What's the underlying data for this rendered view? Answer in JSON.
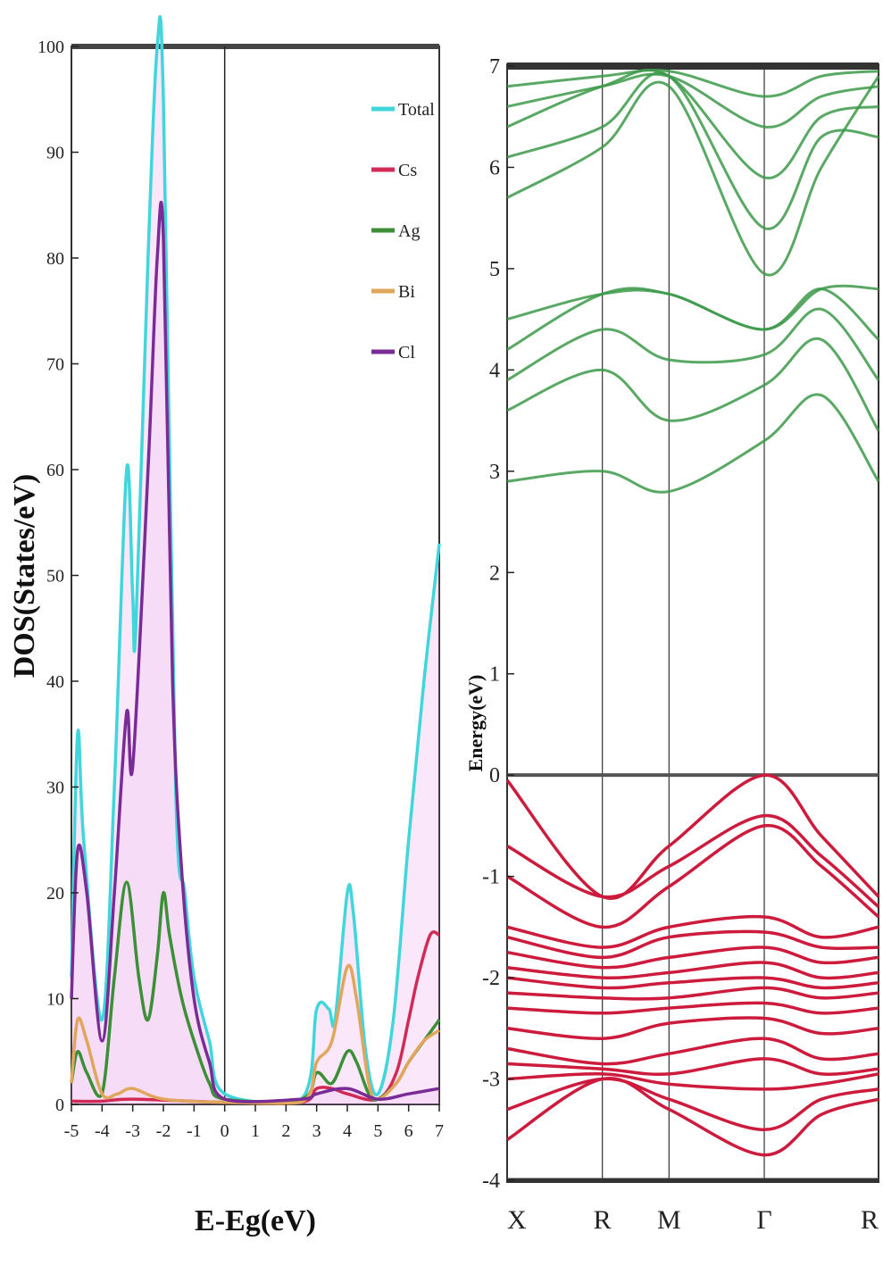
{
  "chart_data": [
    {
      "type": "area",
      "xlabel": "E-Eg(eV)",
      "ylabel": "DOS(States/eV)",
      "xlim": [
        -5,
        7
      ],
      "ylim": [
        0,
        100
      ],
      "x_ticks": [
        "-5",
        "-4",
        "-3",
        "-2",
        "-1",
        "0",
        "1",
        "2",
        "3",
        "4",
        "5",
        "6",
        "7"
      ],
      "y_ticks": [
        "0",
        "10",
        "20",
        "30",
        "40",
        "50",
        "60",
        "70",
        "80",
        "90",
        "100"
      ],
      "legend_position": "top-right",
      "series": [
        {
          "name": "Total",
          "color": "#40d6dc",
          "points": [
            [
              -5,
              12
            ],
            [
              -4.8,
              35
            ],
            [
              -4.6,
              25
            ],
            [
              -4,
              8
            ],
            [
              -3.6,
              30
            ],
            [
              -3.2,
              60
            ],
            [
              -3,
              48
            ],
            [
              -2.9,
              45
            ],
            [
              -2.5,
              80
            ],
            [
              -2.2,
              100
            ],
            [
              -2,
              95
            ],
            [
              -1.6,
              30
            ],
            [
              -1.3,
              20
            ],
            [
              -1,
              12
            ],
            [
              -0.5,
              6
            ],
            [
              0,
              1
            ],
            [
              2.5,
              0.5
            ],
            [
              3,
              9
            ],
            [
              3.4,
              9
            ],
            [
              3.6,
              8
            ],
            [
              4,
              20
            ],
            [
              4.2,
              18
            ],
            [
              4.6,
              5
            ],
            [
              5,
              1
            ],
            [
              5.5,
              8
            ],
            [
              6,
              25
            ],
            [
              6.5,
              40
            ],
            [
              7,
              53
            ]
          ]
        },
        {
          "name": "Cs",
          "color": "#d22a56",
          "points": [
            [
              -5,
              0.3
            ],
            [
              -4,
              0.3
            ],
            [
              -3,
              0.5
            ],
            [
              0,
              0.2
            ],
            [
              2.5,
              0.2
            ],
            [
              3,
              1.5
            ],
            [
              3.5,
              1.5
            ],
            [
              4,
              1
            ],
            [
              5,
              0.5
            ],
            [
              5.6,
              3
            ],
            [
              6,
              8
            ],
            [
              6.3,
              12
            ],
            [
              6.7,
              16
            ],
            [
              7,
              16
            ]
          ]
        },
        {
          "name": "Ag",
          "color": "#3b8f36",
          "points": [
            [
              -5,
              2
            ],
            [
              -4.8,
              5
            ],
            [
              -4.5,
              3
            ],
            [
              -4,
              1
            ],
            [
              -3.6,
              12
            ],
            [
              -3.2,
              21
            ],
            [
              -2.8,
              12
            ],
            [
              -2.5,
              8
            ],
            [
              -2.2,
              14
            ],
            [
              -2,
              20
            ],
            [
              -1.8,
              16
            ],
            [
              -1.4,
              10
            ],
            [
              -1,
              6
            ],
            [
              -0.5,
              2
            ],
            [
              0,
              0.5
            ],
            [
              2.5,
              0.5
            ],
            [
              3,
              3
            ],
            [
              3.5,
              2
            ],
            [
              4,
              5
            ],
            [
              4.3,
              4
            ],
            [
              4.7,
              1
            ],
            [
              5,
              0.5
            ],
            [
              5.6,
              2
            ],
            [
              6,
              4
            ],
            [
              6.5,
              6
            ],
            [
              7,
              8
            ]
          ]
        },
        {
          "name": "Bi",
          "color": "#e0a65c",
          "points": [
            [
              -5,
              2
            ],
            [
              -4.8,
              8
            ],
            [
              -4.5,
              6
            ],
            [
              -4,
              1
            ],
            [
              -3.5,
              1
            ],
            [
              -3,
              1.5
            ],
            [
              -2,
              0.5
            ],
            [
              0,
              0.2
            ],
            [
              2.5,
              0.2
            ],
            [
              3,
              4
            ],
            [
              3.5,
              6
            ],
            [
              4,
              13
            ],
            [
              4.3,
              10
            ],
            [
              4.7,
              2
            ],
            [
              5,
              0.5
            ],
            [
              5.6,
              2
            ],
            [
              6,
              4
            ],
            [
              6.5,
              6
            ],
            [
              7,
              7
            ]
          ]
        },
        {
          "name": "Cl",
          "color": "#7a2c96",
          "points": [
            [
              -5,
              10
            ],
            [
              -4.8,
              24
            ],
            [
              -4.5,
              20
            ],
            [
              -4,
              6
            ],
            [
              -3.6,
              20
            ],
            [
              -3.2,
              37
            ],
            [
              -3,
              32
            ],
            [
              -2.5,
              60
            ],
            [
              -2.2,
              80
            ],
            [
              -2,
              82
            ],
            [
              -1.7,
              40
            ],
            [
              -1.4,
              22
            ],
            [
              -1,
              10
            ],
            [
              -0.5,
              4
            ],
            [
              0,
              0.5
            ],
            [
              2.5,
              0.5
            ],
            [
              3,
              1
            ],
            [
              4,
              1.5
            ],
            [
              5,
              0.5
            ],
            [
              6,
              1
            ],
            [
              7,
              1.5
            ]
          ]
        }
      ]
    },
    {
      "type": "line",
      "ylabel": "Energy(eV)",
      "ylim": [
        -4,
        7
      ],
      "y_ticks": [
        "-4",
        "-3",
        "-2",
        "-1",
        "0",
        "1",
        "2",
        "3",
        "4",
        "5",
        "6",
        "7"
      ],
      "x_ticks": [
        "X",
        "R",
        "M",
        "Γ",
        "R"
      ],
      "k_positions": [
        0,
        1,
        1.7,
        2.7,
        3.9
      ],
      "fermi_level": 0,
      "conduction_color": "#3c9a4a",
      "valence_color": "#cc1b3c",
      "conduction_bands": [
        [
          2.9,
          3.0,
          2.8,
          3.3,
          3.75,
          2.9
        ],
        [
          3.6,
          4.0,
          3.5,
          3.85,
          4.3,
          3.4
        ],
        [
          3.9,
          4.4,
          4.1,
          4.15,
          4.6,
          3.9
        ],
        [
          4.2,
          4.75,
          4.75,
          4.4,
          4.8,
          4.3
        ],
        [
          4.5,
          4.75,
          4.75,
          4.4,
          4.8,
          4.8
        ],
        [
          5.7,
          6.2,
          6.8,
          4.95,
          6.0,
          6.9
        ],
        [
          6.1,
          6.4,
          6.9,
          5.4,
          6.3,
          6.3
        ],
        [
          6.4,
          6.8,
          6.9,
          5.9,
          6.5,
          6.6
        ],
        [
          6.6,
          6.8,
          6.9,
          6.4,
          6.7,
          6.8
        ],
        [
          6.8,
          6.9,
          6.95,
          6.7,
          6.9,
          6.95
        ]
      ],
      "valence_bands": [
        [
          -0.05,
          -1.2,
          -0.7,
          0.0,
          -0.6,
          -1.2
        ],
        [
          -0.7,
          -1.2,
          -0.9,
          -0.4,
          -0.8,
          -1.3
        ],
        [
          -1.0,
          -1.5,
          -1.1,
          -0.5,
          -0.9,
          -1.4
        ],
        [
          -1.5,
          -1.7,
          -1.5,
          -1.4,
          -1.6,
          -1.5
        ],
        [
          -1.6,
          -1.8,
          -1.6,
          -1.55,
          -1.7,
          -1.7
        ],
        [
          -1.75,
          -1.9,
          -1.8,
          -1.7,
          -1.85,
          -1.8
        ],
        [
          -1.9,
          -2.0,
          -1.95,
          -1.85,
          -2.0,
          -1.95
        ],
        [
          -2.0,
          -2.1,
          -2.05,
          -2.0,
          -2.1,
          -2.05
        ],
        [
          -2.15,
          -2.2,
          -2.2,
          -2.1,
          -2.2,
          -2.15
        ],
        [
          -2.3,
          -2.35,
          -2.3,
          -2.25,
          -2.35,
          -2.3
        ],
        [
          -2.5,
          -2.6,
          -2.45,
          -2.4,
          -2.55,
          -2.5
        ],
        [
          -2.7,
          -2.85,
          -2.75,
          -2.6,
          -2.8,
          -2.75
        ],
        [
          -2.85,
          -2.9,
          -2.95,
          -2.8,
          -2.95,
          -2.9
        ],
        [
          -3.0,
          -2.95,
          -3.05,
          -3.1,
          -3.05,
          -2.95
        ],
        [
          -3.3,
          -3.0,
          -3.2,
          -3.5,
          -3.2,
          -3.1
        ],
        [
          -3.6,
          -3.0,
          -3.3,
          -3.75,
          -3.35,
          -3.2
        ]
      ]
    }
  ]
}
